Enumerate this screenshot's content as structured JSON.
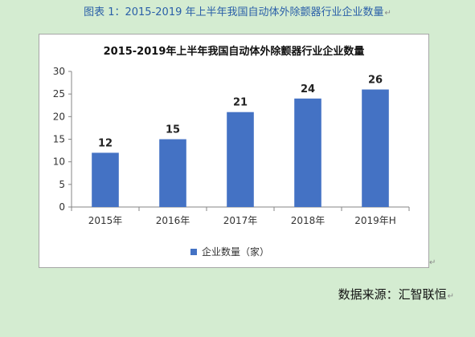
{
  "caption": {
    "text": "图表 1：2015-2019 年上半年我国自动体外除颤器行业企业数量",
    "return_mark": "↵"
  },
  "chart_data": {
    "type": "bar",
    "title": "2015-2019年上半年我国自动体外除颤器行业企业数量",
    "categories": [
      "2015年",
      "2016年",
      "2017年",
      "2018年",
      "2019年H"
    ],
    "series": [
      {
        "name": "企业数量（家）",
        "values": [
          12,
          15,
          21,
          24,
          26
        ],
        "color": "#4472c4"
      }
    ],
    "ylim": [
      0,
      30
    ],
    "yticks": [
      0,
      5,
      10,
      15,
      20,
      25,
      30
    ],
    "grid": false,
    "legend_position": "bottom"
  },
  "chart_return_mark": "↵",
  "source": {
    "text": "数据来源：汇智联恒",
    "return_mark": "↵"
  }
}
